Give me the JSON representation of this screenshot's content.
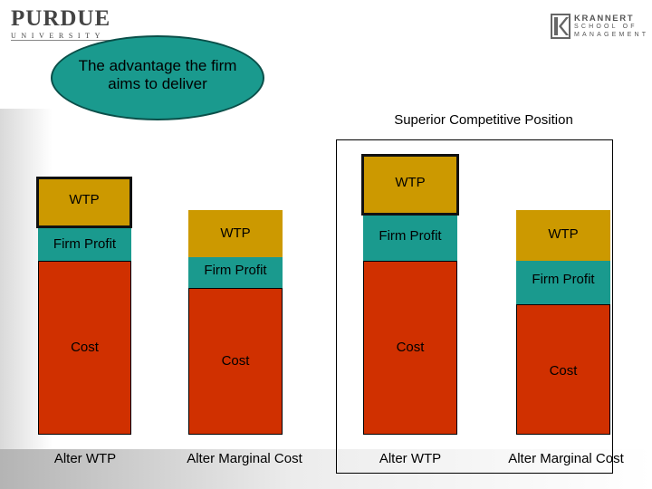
{
  "logos": {
    "purdue": {
      "word": "PURDUE",
      "sub": "UNIVERSITY"
    },
    "krannert": {
      "line1": "KRANNERT",
      "line2": "SCHOOL OF",
      "line3": "MANAGEMENT"
    }
  },
  "callout": {
    "text": "The advantage the firm aims to deliver"
  },
  "superior_label": "Superior Competitive Position",
  "columns": [
    {
      "id": "col1",
      "segments": {
        "wtp": "WTP",
        "profit": "Firm Profit",
        "cost": "Cost"
      },
      "caption": "Alter WTP"
    },
    {
      "id": "col2",
      "segments": {
        "wtp": "WTP",
        "profit": "Firm Profit",
        "cost": "Cost"
      },
      "caption": "Alter Marginal Cost"
    },
    {
      "id": "col3",
      "segments": {
        "wtp": "WTP",
        "profit": "Firm Profit",
        "cost": "Cost"
      },
      "caption": "Alter WTP"
    },
    {
      "id": "col4",
      "segments": {
        "wtp": "WTP",
        "profit": "Firm Profit",
        "cost": "Cost"
      },
      "caption": "Alter Marginal Cost"
    }
  ],
  "colors": {
    "cost": "#d03000",
    "profit": "#1a9a8e",
    "wtp": "#cc9900",
    "callout": "#1a9a8e"
  }
}
